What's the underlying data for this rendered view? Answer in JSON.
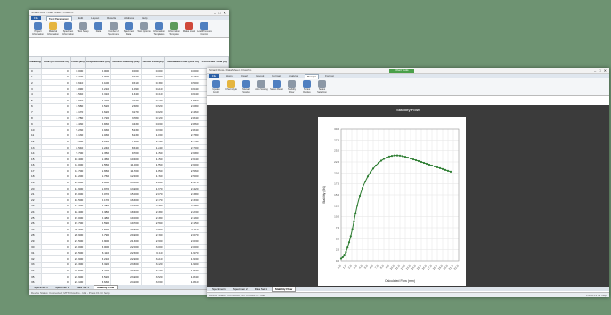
{
  "window1": {
    "title": "Strand Flow - Data Sheet - FlowPro",
    "file_tab": "File",
    "active_tab": "Test Parameters",
    "tabs": [
      "Test Parameters",
      "Edit",
      "Layout",
      "Results",
      "Address",
      "Help"
    ],
    "ribbon": [
      "Project Information",
      "Material Information",
      "Specimen Information",
      "Test Setup",
      "Data",
      "Number of Specimens",
      "Specimen Data",
      "Test Options",
      "Information Templates",
      "Information Template",
      "Make Level",
      "Load/Pressure Control"
    ],
    "columns": [
      "Reading",
      "Time (hh:mm:ss.ss)",
      "Load (kN)",
      "Displacement (in)",
      "Zeroed Stability (kN)",
      "Zeroed Flow (in)",
      "Calculated Flow (0.01 in)",
      "Corrected Flow (in)"
    ],
    "rows": [
      [
        "0",
        "0",
        "0.000",
        "0.000",
        "0.000",
        "0.000",
        "0.000",
        "1.370"
      ],
      [
        "1",
        "0",
        "0.220",
        "0.000",
        "0.220",
        "0.000",
        "0.160",
        "1.470"
      ],
      [
        "2",
        "0",
        "0.610",
        "0.100",
        "0.610",
        "0.180",
        "0.500",
        "1.500"
      ],
      [
        "3",
        "0",
        "1.090",
        "0.210",
        "1.090",
        "0.210",
        "0.640",
        "1.730"
      ],
      [
        "4",
        "0",
        "1.540",
        "0.310",
        "1.540",
        "0.310",
        "0.640",
        "1.730"
      ],
      [
        "5",
        "0",
        "2.040",
        "0.420",
        "2.040",
        "0.420",
        "1.560",
        "2.103"
      ],
      [
        "6",
        "0",
        "2.580",
        "0.520",
        "2.580",
        "0.520",
        "2.080",
        "2.430"
      ],
      [
        "7",
        "0",
        "3.170",
        "0.620",
        "3.170",
        "0.620",
        "2.460",
        "2.547"
      ],
      [
        "8",
        "0",
        "3.780",
        "0.720",
        "3.780",
        "0.720",
        "2.840",
        "2.621"
      ],
      [
        "9",
        "0",
        "4.430",
        "0.830",
        "4.430",
        "0.830",
        "2.860",
        "2.605"
      ],
      [
        "10",
        "0",
        "5.230",
        "0.930",
        "5.230",
        "0.930",
        "2.840",
        "2.651"
      ],
      [
        "11",
        "0",
        "6.130",
        "1.030",
        "6.130",
        "1.030",
        "2.780",
        "2.363"
      ],
      [
        "12",
        "0",
        "7.500",
        "1.140",
        "7.500",
        "1.140",
        "2.740",
        "2.358"
      ],
      [
        "13",
        "0",
        "8.540",
        "1.240",
        "8.540",
        "1.240",
        "2.700",
        "2.347"
      ],
      [
        "14",
        "0",
        "9.700",
        "1.350",
        "9.700",
        "1.350",
        "2.680",
        "2.342"
      ],
      [
        "15",
        "0",
        "10.400",
        "1.450",
        "10.400",
        "1.450",
        "2.640",
        "2.232"
      ],
      [
        "16",
        "0",
        "11.000",
        "1.550",
        "11.000",
        "1.550",
        "2.600",
        "2.281"
      ],
      [
        "17",
        "0",
        "11.700",
        "1.650",
        "11.700",
        "1.650",
        "2.560",
        "2.271"
      ],
      [
        "18",
        "0",
        "12.200",
        "1.760",
        "12.200",
        "1.760",
        "2.500",
        "2.258"
      ],
      [
        "19",
        "0",
        "13.000",
        "1.860",
        "13.000",
        "1.860",
        "2.470",
        "2.247"
      ],
      [
        "20",
        "0",
        "13.900",
        "1.970",
        "13.900",
        "1.970",
        "2.420",
        "2.230"
      ],
      [
        "21",
        "0",
        "15.000",
        "2.070",
        "15.000",
        "2.070",
        "2.380",
        "2.221"
      ],
      [
        "22",
        "0",
        "16.500",
        "2.170",
        "16.500",
        "2.170",
        "2.330",
        "2.205"
      ],
      [
        "23",
        "0",
        "17.200",
        "2.280",
        "17.200",
        "2.280",
        "2.280",
        "2.190"
      ],
      [
        "24",
        "0",
        "18.400",
        "2.380",
        "18.400",
        "2.380",
        "2.230",
        "2.173"
      ],
      [
        "25",
        "0",
        "19.000",
        "2.480",
        "19.000",
        "2.480",
        "2.190",
        "2.154"
      ],
      [
        "26",
        "0",
        "19.700",
        "2.590",
        "19.700",
        "2.590",
        "2.150",
        "2.138"
      ],
      [
        "27",
        "0",
        "20.300",
        "2.690",
        "20.300",
        "2.690",
        "2.110",
        "2.127"
      ],
      [
        "28",
        "0",
        "20.900",
        "2.790",
        "20.900",
        "2.790",
        "2.070",
        "2.111"
      ],
      [
        "29",
        "0",
        "21.500",
        "2.900",
        "21.500",
        "2.900",
        "2.030",
        "2.095"
      ],
      [
        "30",
        "0",
        "22.000",
        "3.000",
        "22.000",
        "3.000",
        "2.000",
        "2.080"
      ],
      [
        "31",
        "0",
        "22.500",
        "3.110",
        "22.500",
        "3.110",
        "1.970",
        "2.069"
      ],
      [
        "32",
        "0",
        "22.900",
        "3.210",
        "22.900",
        "3.210",
        "1.930",
        "2.052"
      ],
      [
        "33",
        "0",
        "23.300",
        "3.320",
        "23.300",
        "3.320",
        "1.900",
        "2.036"
      ],
      [
        "34",
        "0",
        "23.600",
        "3.420",
        "23.600",
        "3.420",
        "1.870",
        "2.021"
      ],
      [
        "35",
        "0",
        "23.900",
        "3.520",
        "23.900",
        "3.520",
        "1.840",
        "2.005"
      ],
      [
        "36",
        "0",
        "24.100",
        "3.630",
        "24.100",
        "3.630",
        "1.810",
        "1.990"
      ],
      [
        "37",
        "0",
        "24.300",
        "3.730",
        "24.300",
        "3.730",
        "1.780",
        "1.975"
      ],
      [
        "38",
        "0",
        "24.400",
        "3.840",
        "24.400",
        "3.840",
        "1.750",
        "1.961"
      ],
      [
        "39",
        "0",
        "24.500",
        "3.940",
        "24.500",
        "3.940",
        "1.720",
        "1.946"
      ],
      [
        "40",
        "0",
        "24.600",
        "4.040",
        "24.600",
        "4.040",
        "1.690",
        "1.932"
      ]
    ],
    "sheet_tabs": [
      "Specimen 1",
      "Specimen 2",
      "Data Set 1",
      "Stability Flow"
    ],
    "status": "Device Status: Connected; MTS FlowPro - Idle - Press F1 for help"
  },
  "window2": {
    "title": "Strand Flow - Data Sheet - FlowPro",
    "file_tab": "File",
    "context_tab": "Chart Tools",
    "tabs": [
      "Home",
      "Insert",
      "Layout",
      "Format",
      "Analysis",
      "Design",
      "Format"
    ],
    "active_tab": "Design",
    "ribbon": [
      "Update Graph",
      "Chart Style",
      "Manual Scaling",
      "Auto Scaling",
      "Series Reset",
      "Stability Flow",
      "Series Display",
      "Series Selection"
    ],
    "sheet_tabs": [
      "Specimen 1",
      "Specimen 2",
      "Data Set 1",
      "Stability Flow"
    ],
    "status": "Device Status: Connected; MTS FlowPro - Idle",
    "status_right": "Press F1 for help"
  },
  "chart_data": {
    "type": "line",
    "title": "Stability Flow",
    "xlabel": "Calculated Flow (mm)",
    "ylabel": "Stability (kN)",
    "xlim": [
      0,
      22
    ],
    "ylim": [
      0,
      30
    ],
    "grid": true,
    "series": [
      {
        "x": [
          0,
          0.3,
          0.6,
          0.9,
          1.2,
          1.5,
          1.8,
          2.1,
          2.4,
          2.7,
          3.0,
          3.5,
          4.0,
          4.5,
          5.0,
          5.5,
          6.0,
          6.5,
          7.0,
          7.5,
          8.0,
          8.5,
          9.0,
          9.5,
          10.0,
          10.5,
          11.0,
          11.5,
          12.0,
          12.5,
          13.0,
          13.5,
          14.0,
          14.5,
          15.0,
          15.5,
          16.0,
          16.5,
          17.0,
          17.5,
          18.0,
          18.5,
          19.0,
          19.5,
          20.0,
          20.5
        ],
        "y": [
          0.5,
          0.8,
          1.2,
          2.0,
          3.0,
          4.2,
          5.6,
          7.2,
          9.0,
          10.8,
          12.5,
          14.8,
          16.6,
          18.0,
          19.2,
          20.2,
          21.0,
          21.7,
          22.3,
          22.8,
          23.2,
          23.5,
          23.75,
          23.9,
          24.0,
          24.0,
          23.95,
          23.85,
          23.7,
          23.5,
          23.3,
          23.1,
          22.9,
          22.7,
          22.5,
          22.3,
          22.1,
          21.9,
          21.7,
          21.5,
          21.3,
          21.1,
          20.9,
          20.7,
          20.5,
          20.3
        ]
      }
    ],
    "color": "#2e7d32"
  }
}
